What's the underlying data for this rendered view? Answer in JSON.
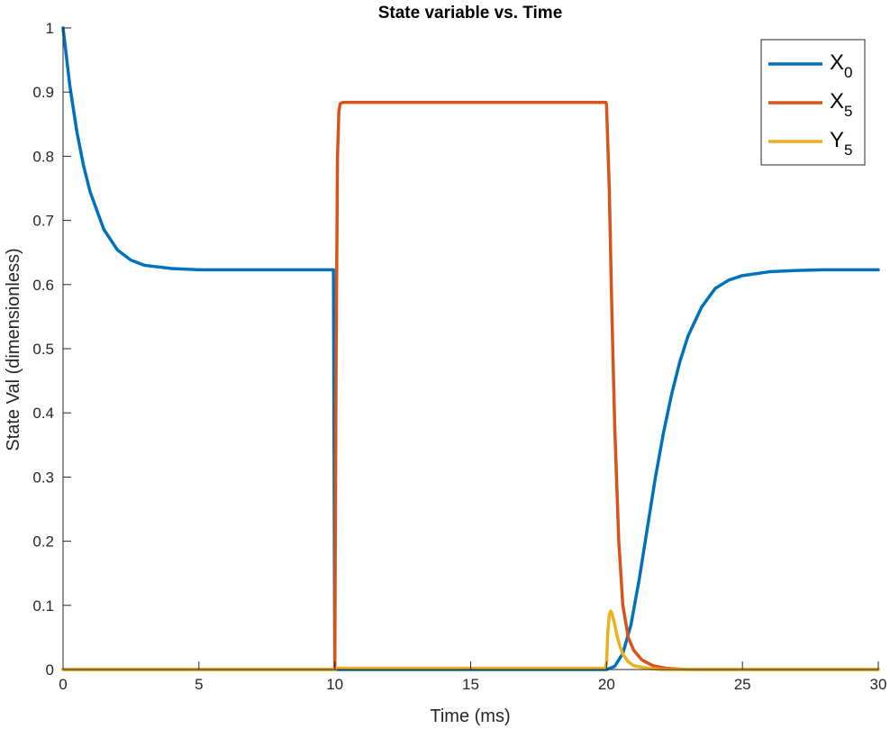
{
  "chart_data": {
    "type": "line",
    "title": "State variable vs. Time",
    "xlabel": "Time (ms)",
    "ylabel": "State Val (dimensionless)",
    "xlim": [
      0,
      30
    ],
    "ylim": [
      0,
      1
    ],
    "x_ticks": [
      "0",
      "5",
      "10",
      "15",
      "20",
      "25",
      "30"
    ],
    "y_ticks": [
      "0",
      "0.1",
      "0.2",
      "0.3",
      "0.4",
      "0.5",
      "0.6",
      "0.7",
      "0.8",
      "0.9",
      "1"
    ],
    "grid": false,
    "legend_position": "top-right",
    "colors": {
      "axis": "#262626",
      "background": "#ffffff"
    },
    "series": [
      {
        "name": "X0",
        "legend_main": "X",
        "legend_sub": "0",
        "color": "#0072BD",
        "x": [
          0,
          0.25,
          0.5,
          0.75,
          1,
          1.5,
          2,
          2.5,
          3,
          4,
          5,
          6,
          7,
          8,
          9,
          9.95,
          10.0,
          10.05,
          12,
          15,
          19,
          20,
          20.3,
          20.6,
          20.9,
          21.2,
          21.5,
          21.8,
          22.1,
          22.4,
          22.7,
          23,
          23.5,
          24,
          24.5,
          25,
          26,
          27,
          28,
          29,
          30
        ],
        "y": [
          1,
          0.91,
          0.84,
          0.786,
          0.744,
          0.686,
          0.654,
          0.638,
          0.63,
          0.625,
          0.623,
          0.623,
          0.623,
          0.623,
          0.623,
          0.623,
          0.002,
          0,
          0,
          0,
          0,
          0,
          0.005,
          0.025,
          0.07,
          0.14,
          0.22,
          0.3,
          0.37,
          0.43,
          0.48,
          0.52,
          0.565,
          0.594,
          0.607,
          0.614,
          0.62,
          0.622,
          0.623,
          0.623,
          0.623
        ]
      },
      {
        "name": "X5",
        "legend_main": "X",
        "legend_sub": "5",
        "color": "#D95319",
        "x": [
          0,
          9.98,
          10.0,
          10.05,
          10.1,
          10.15,
          10.2,
          10.3,
          10.5,
          12,
          15,
          18,
          19.98,
          20.0,
          20.1,
          20.2,
          20.3,
          20.45,
          20.6,
          20.8,
          21,
          21.3,
          21.7,
          22.2,
          23,
          25,
          30
        ],
        "y": [
          0,
          0,
          0,
          0.5,
          0.8,
          0.87,
          0.882,
          0.884,
          0.884,
          0.884,
          0.884,
          0.884,
          0.884,
          0.88,
          0.75,
          0.55,
          0.38,
          0.2,
          0.1,
          0.05,
          0.03,
          0.015,
          0.006,
          0.002,
          0,
          0,
          0
        ]
      },
      {
        "name": "Y5",
        "legend_main": "Y",
        "legend_sub": "5",
        "color": "#EDB120",
        "x": [
          0,
          10,
          10.1,
          15,
          19.95,
          20.0,
          20.05,
          20.1,
          20.15,
          20.2,
          20.3,
          20.4,
          20.5,
          20.6,
          20.8,
          21,
          21.5,
          22,
          25,
          30
        ],
        "y": [
          0,
          0,
          0.002,
          0.002,
          0.002,
          0.01,
          0.06,
          0.085,
          0.091,
          0.088,
          0.07,
          0.05,
          0.035,
          0.024,
          0.012,
          0.006,
          0.002,
          0,
          0,
          0
        ]
      }
    ]
  }
}
